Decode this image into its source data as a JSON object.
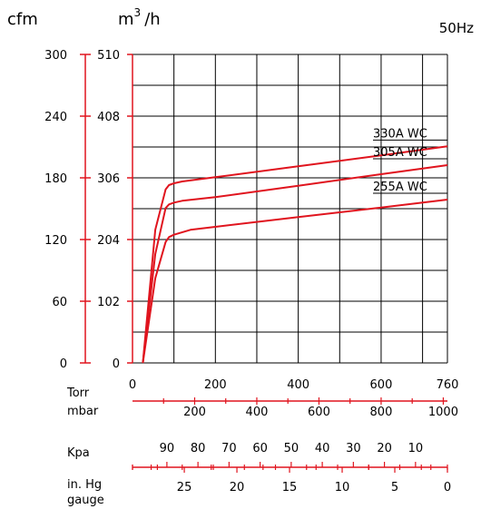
{
  "header": {
    "unit_cfm": "cfm",
    "unit_m3h_base": "m",
    "unit_m3h_sup": "3",
    "unit_m3h_tail": "/h",
    "frequency": "50Hz"
  },
  "chart_data": {
    "type": "line",
    "x_unit_label": "Torr",
    "xlim": [
      0,
      760
    ],
    "ylim_m3h": [
      0,
      510
    ],
    "x_ticks_torr": [
      0,
      200,
      400,
      600,
      760
    ],
    "y_ticks_m3h": [
      "0",
      "102",
      "204",
      "306",
      "408",
      "510"
    ],
    "y_ticks_cfm": [
      "0",
      "60",
      "120",
      "180",
      "240",
      "300"
    ],
    "y_gridlines_m3h": [
      51,
      102,
      153,
      204,
      255,
      306,
      357,
      408,
      459,
      510
    ],
    "x_gridlines_torr": [
      0,
      100,
      200,
      300,
      400,
      500,
      600,
      700,
      760
    ],
    "secondary_axes": [
      {
        "label": "mbar",
        "ticks": [
          {
            "label": "200",
            "torr": 150
          },
          {
            "label": "400",
            "torr": 300
          },
          {
            "label": "600",
            "torr": 450
          },
          {
            "label": "800",
            "torr": 600
          },
          {
            "label": "1000",
            "torr": 750
          }
        ],
        "minor_torr": [
          75,
          225,
          375,
          525,
          675
        ]
      },
      {
        "label": "Kpa",
        "ticks": [
          {
            "label": "90",
            "torr": 83
          },
          {
            "label": "80",
            "torr": 158
          },
          {
            "label": "70",
            "torr": 233
          },
          {
            "label": "60",
            "torr": 308
          },
          {
            "label": "50",
            "torr": 383
          },
          {
            "label": "40",
            "torr": 458
          },
          {
            "label": "30",
            "torr": 533
          },
          {
            "label": "20",
            "torr": 608
          },
          {
            "label": "10",
            "torr": 683
          }
        ],
        "minor_torr": [
          0,
          45,
          120,
          195,
          270,
          345,
          420,
          495,
          570,
          645,
          720,
          760
        ]
      },
      {
        "label_line1": "in. Hg",
        "label_line2": "gauge",
        "ticks": [
          {
            "label": "25",
            "torr": 125
          },
          {
            "label": "20",
            "torr": 252
          },
          {
            "label": "15",
            "torr": 379
          },
          {
            "label": "10",
            "torr": 506
          },
          {
            "label": "5",
            "torr": 633
          },
          {
            "label": "0",
            "torr": 760
          }
        ],
        "minor_torr": [
          0,
          60,
          190,
          315,
          443,
          570,
          697
        ]
      }
    ],
    "series": [
      {
        "name": "330A WC",
        "x": [
          25,
          55,
          80,
          88,
          100,
          120,
          200,
          400,
          600,
          760
        ],
        "y": [
          0,
          220,
          287,
          294,
          297,
          300,
          307,
          325,
          343,
          358
        ]
      },
      {
        "name": "305A WC",
        "x": [
          25,
          55,
          80,
          88,
          100,
          120,
          200,
          400,
          600,
          760
        ],
        "y": [
          0,
          180,
          256,
          262,
          265,
          268,
          274,
          293,
          312,
          327
        ]
      },
      {
        "name": "255A WC",
        "x": [
          25,
          55,
          80,
          88,
          100,
          140,
          200,
          400,
          600,
          760
        ],
        "y": [
          0,
          140,
          200,
          208,
          212,
          220,
          225,
          241,
          257,
          270
        ]
      }
    ]
  }
}
